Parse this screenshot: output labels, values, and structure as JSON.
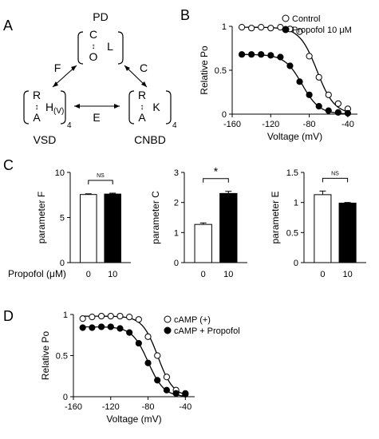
{
  "panel_letters": [
    "A",
    "B",
    "C",
    "D"
  ],
  "model": {
    "nodes": {
      "pd": {
        "name": "PD",
        "lines": [
          "C",
          "↕",
          "O"
        ],
        "side": "L"
      },
      "vsd": {
        "name": "VSD",
        "lines": [
          "R",
          "↕",
          "A"
        ],
        "side": "H",
        "side_sub": "(V)",
        "power": "4"
      },
      "cnbd": {
        "name": "CNBD",
        "lines": [
          "R",
          "↕",
          "A"
        ],
        "side": "K",
        "power": "4"
      }
    },
    "edges": {
      "vsd_pd": "F",
      "pd_cnbd": "C",
      "vsd_cnbd": "E"
    }
  },
  "chart_data": [
    {
      "type": "scatter",
      "panel": "B",
      "xlabel": "Voltage (mV)",
      "ylabel": "Relative Po",
      "xlim": [
        -160,
        -30
      ],
      "ylim": [
        0,
        1.0
      ],
      "xticks": [
        -160,
        -120,
        -80,
        -40
      ],
      "yticks": [
        0,
        0.5,
        1.0
      ],
      "legend_position": "top-right",
      "series": [
        {
          "name": "Control",
          "marker": "open",
          "x": [
            -150,
            -140,
            -130,
            -120,
            -110,
            -100,
            -90,
            -80,
            -70,
            -60,
            -50,
            -40
          ],
          "y": [
            0.99,
            0.98,
            0.99,
            0.98,
            0.99,
            0.97,
            0.94,
            0.66,
            0.42,
            0.22,
            0.12,
            0.06
          ]
        },
        {
          "name": "Propofol 10 μM",
          "marker": "filled",
          "x": [
            -150,
            -140,
            -130,
            -120,
            -110,
            -100,
            -90,
            -80,
            -70,
            -60,
            -50,
            -40
          ],
          "y": [
            0.68,
            0.68,
            0.68,
            0.67,
            0.65,
            0.55,
            0.37,
            0.22,
            0.09,
            0.04,
            0.02,
            0.01
          ]
        }
      ]
    },
    {
      "type": "bar",
      "panel": "C",
      "ylabel": "parameter F",
      "xlabel": "Propofol (μM)",
      "categories": [
        "0",
        "10"
      ],
      "values": [
        7.55,
        7.6
      ],
      "errors": [
        0.08,
        0.1
      ],
      "ylim": [
        0,
        10
      ],
      "yticks": [
        0,
        5,
        10
      ],
      "significance": "NS"
    },
    {
      "type": "bar",
      "panel": "C",
      "ylabel": "parameter C",
      "categories": [
        "0",
        "10"
      ],
      "values": [
        1.27,
        2.3
      ],
      "errors": [
        0.05,
        0.07
      ],
      "ylim": [
        0,
        3
      ],
      "yticks": [
        0,
        1,
        2,
        3
      ],
      "significance": "*"
    },
    {
      "type": "bar",
      "panel": "C",
      "ylabel": "parameter E",
      "categories": [
        "0",
        "10"
      ],
      "values": [
        1.13,
        0.99
      ],
      "errors": [
        0.06,
        0.01
      ],
      "ylim": [
        0,
        1.5
      ],
      "yticks": [
        0,
        0.5,
        1.0,
        1.5
      ],
      "significance": "NS"
    },
    {
      "type": "scatter",
      "panel": "D",
      "xlabel": "Voltage (mV)",
      "ylabel": "Relative Po",
      "xlim": [
        -160,
        -30
      ],
      "ylim": [
        0,
        1.0
      ],
      "xticks": [
        -160,
        -120,
        -80,
        -40
      ],
      "yticks": [
        0,
        0.5,
        1.0
      ],
      "legend_position": "top-right",
      "series": [
        {
          "name": "cAMP (+)",
          "marker": "open",
          "x": [
            -150,
            -140,
            -130,
            -120,
            -110,
            -100,
            -90,
            -80,
            -70,
            -60,
            -50,
            -40
          ],
          "y": [
            0.95,
            0.97,
            0.98,
            0.98,
            0.98,
            0.97,
            0.94,
            0.73,
            0.5,
            0.24,
            0.08,
            0.04
          ]
        },
        {
          "name": "cAMP + Propofol",
          "marker": "filled",
          "x": [
            -150,
            -140,
            -130,
            -120,
            -110,
            -100,
            -90,
            -80,
            -70,
            -60,
            -50,
            -40
          ],
          "y": [
            0.84,
            0.84,
            0.85,
            0.85,
            0.83,
            0.78,
            0.65,
            0.41,
            0.2,
            0.08,
            0.04,
            0.03
          ]
        }
      ]
    }
  ]
}
